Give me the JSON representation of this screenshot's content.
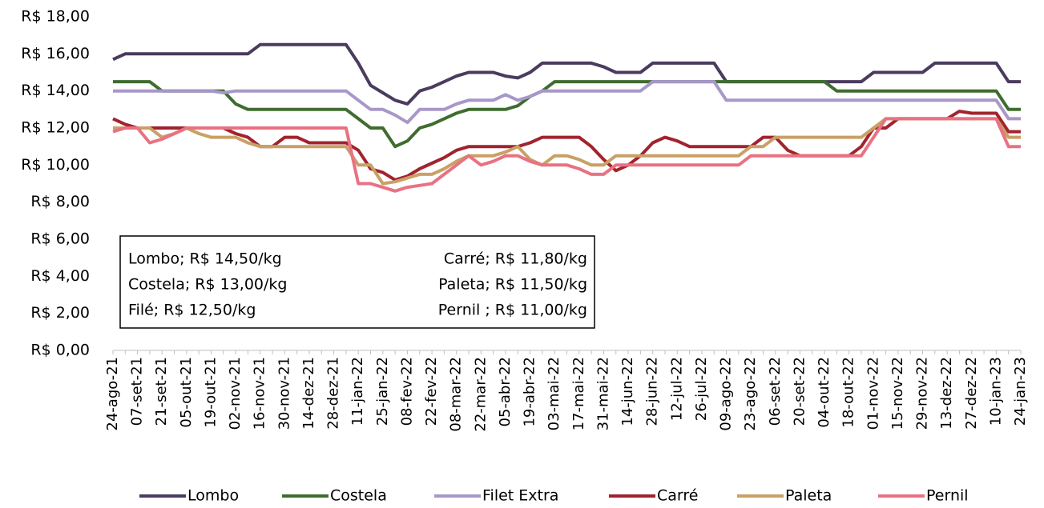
{
  "chart_data": {
    "type": "line",
    "categories": [
      "24-ago-21",
      null,
      "07-set-21",
      null,
      "21-set-21",
      null,
      "05-out-21",
      null,
      "19-out-21",
      null,
      "02-nov-21",
      null,
      "16-nov-21",
      null,
      "30-nov-21",
      null,
      "14-dez-21",
      null,
      "28-dez-21",
      null,
      "11-jan-22",
      null,
      "25-jan-22",
      null,
      "08-fev-22",
      null,
      "22-fev-22",
      null,
      "08-mar-22",
      null,
      "22-mar-22",
      null,
      "05-abr-22",
      null,
      "19-abr-22",
      null,
      "03-mai-22",
      null,
      "17-mai-22",
      null,
      "31-mai-22",
      null,
      "14-jun-22",
      null,
      "28-jun-22",
      null,
      "12-jul-22",
      null,
      "26-jul-22",
      null,
      "09-ago-22",
      null,
      "23-ago-22",
      null,
      "06-set-22",
      null,
      "20-set-22",
      null,
      "04-out-22",
      null,
      "18-out-22",
      null,
      "01-nov-22",
      null,
      "15-nov-22",
      null,
      "29-nov-22",
      null,
      "13-dez-22",
      null,
      "27-dez-22",
      null,
      "10-jan-23",
      null,
      "24-jan-23"
    ],
    "series": [
      {
        "name": "Lombo",
        "color": "#4b3b5f",
        "values": [
          15.7,
          16,
          16,
          16,
          16,
          16,
          16,
          16,
          16,
          16,
          16,
          16,
          16.5,
          16.5,
          16.5,
          16.5,
          16.5,
          16.5,
          16.5,
          16.5,
          15.5,
          14.3,
          13.9,
          13.5,
          13.3,
          14,
          14.2,
          14.5,
          14.8,
          15,
          15,
          15,
          14.8,
          14.7,
          15,
          15.5,
          15.5,
          15.5,
          15.5,
          15.5,
          15.3,
          15,
          15,
          15,
          15.5,
          15.5,
          15.5,
          15.5,
          15.5,
          15.5,
          14.5,
          14.5,
          14.5,
          14.5,
          14.5,
          14.5,
          14.5,
          14.5,
          14.5,
          14.5,
          14.5,
          14.5,
          15,
          15,
          15,
          15,
          15,
          15.5,
          15.5,
          15.5,
          15.5,
          15.5,
          15.5,
          14.5,
          14.5
        ]
      },
      {
        "name": "Costela",
        "color": "#3f6c2f",
        "values": [
          14.5,
          14.5,
          14.5,
          14.5,
          14,
          14,
          14,
          14,
          14,
          14,
          13.3,
          13,
          13,
          13,
          13,
          13,
          13,
          13,
          13,
          13,
          12.5,
          12,
          12,
          11,
          11.3,
          12,
          12.2,
          12.5,
          12.8,
          13,
          13,
          13,
          13,
          13.2,
          13.7,
          14,
          14.5,
          14.5,
          14.5,
          14.5,
          14.5,
          14.5,
          14.5,
          14.5,
          14.5,
          14.5,
          14.5,
          14.5,
          14.5,
          14.5,
          14.5,
          14.5,
          14.5,
          14.5,
          14.5,
          14.5,
          14.5,
          14.5,
          14.5,
          14,
          14,
          14,
          14,
          14,
          14,
          14,
          14,
          14,
          14,
          14,
          14,
          14,
          14,
          13,
          13
        ]
      },
      {
        "name": "Filet Extra",
        "color": "#a897c9",
        "values": [
          14,
          14,
          14,
          14,
          14,
          14,
          14,
          14,
          14,
          13.9,
          14,
          14,
          14,
          14,
          14,
          14,
          14,
          14,
          14,
          14,
          13.5,
          13,
          13,
          12.7,
          12.3,
          13,
          13,
          13,
          13.3,
          13.5,
          13.5,
          13.5,
          13.8,
          13.5,
          13.7,
          14,
          14,
          14,
          14,
          14,
          14,
          14,
          14,
          14,
          14.5,
          14.5,
          14.5,
          14.5,
          14.5,
          14.5,
          13.5,
          13.5,
          13.5,
          13.5,
          13.5,
          13.5,
          13.5,
          13.5,
          13.5,
          13.5,
          13.5,
          13.5,
          13.5,
          13.5,
          13.5,
          13.5,
          13.5,
          13.5,
          13.5,
          13.5,
          13.5,
          13.5,
          13.5,
          12.5,
          12.5
        ]
      },
      {
        "name": "Carré",
        "color": "#a1232d",
        "values": [
          12.5,
          12.2,
          12,
          12,
          12,
          12,
          12,
          12,
          12,
          12,
          11.7,
          11.5,
          11,
          11,
          11.5,
          11.5,
          11.2,
          11.2,
          11.2,
          11.2,
          10.8,
          9.8,
          9.6,
          9.2,
          9.4,
          9.8,
          10.1,
          10.4,
          10.8,
          11,
          11,
          11,
          11,
          11,
          11.2,
          11.5,
          11.5,
          11.5,
          11.5,
          11,
          10.3,
          9.7,
          10,
          10.5,
          11.2,
          11.5,
          11.3,
          11,
          11,
          11,
          11,
          11,
          11,
          11.5,
          11.5,
          10.8,
          10.5,
          10.5,
          10.5,
          10.5,
          10.5,
          11,
          12,
          12,
          12.5,
          12.5,
          12.5,
          12.5,
          12.5,
          12.9,
          12.8,
          12.8,
          12.8,
          11.8,
          11.8
        ]
      },
      {
        "name": "Paleta",
        "color": "#c9a065",
        "values": [
          12,
          12,
          12,
          12,
          11.5,
          11.7,
          12,
          11.7,
          11.5,
          11.5,
          11.5,
          11.2,
          11,
          11,
          11,
          11,
          11,
          11,
          11,
          11,
          10,
          10,
          9,
          9.1,
          9.3,
          9.5,
          9.5,
          9.8,
          10.2,
          10.5,
          10.5,
          10.5,
          10.7,
          11,
          10.3,
          10,
          10.5,
          10.5,
          10.3,
          10,
          10,
          10.5,
          10.5,
          10.5,
          10.5,
          10.5,
          10.5,
          10.5,
          10.5,
          10.5,
          10.5,
          10.5,
          11,
          11,
          11.5,
          11.5,
          11.5,
          11.5,
          11.5,
          11.5,
          11.5,
          11.5,
          12,
          12.5,
          12.5,
          12.5,
          12.5,
          12.5,
          12.5,
          12.5,
          12.5,
          12.5,
          12.5,
          11.5,
          11.5
        ]
      },
      {
        "name": "Pernil",
        "color": "#e87282",
        "values": [
          11.8,
          12,
          12,
          11.2,
          11.4,
          11.7,
          12,
          12,
          12,
          12,
          12,
          12,
          12,
          12,
          12,
          12,
          12,
          12,
          12,
          12,
          9,
          9,
          8.8,
          8.6,
          8.8,
          8.9,
          9,
          9.5,
          10,
          10.5,
          10,
          10.2,
          10.5,
          10.5,
          10.2,
          10,
          10,
          10,
          9.8,
          9.5,
          9.5,
          10,
          10,
          10,
          10,
          10,
          10,
          10,
          10,
          10,
          10,
          10,
          10.5,
          10.5,
          10.5,
          10.5,
          10.5,
          10.5,
          10.5,
          10.5,
          10.5,
          10.5,
          11.5,
          12.5,
          12.5,
          12.5,
          12.5,
          12.5,
          12.5,
          12.5,
          12.5,
          12.5,
          12.5,
          11,
          11
        ]
      }
    ],
    "ylim": [
      0,
      18
    ],
    "yticks": [
      {
        "value": 0,
        "label": "R$ 0,00"
      },
      {
        "value": 2,
        "label": "R$ 2,00"
      },
      {
        "value": 4,
        "label": "R$ 4,00"
      },
      {
        "value": 6,
        "label": "R$ 6,00"
      },
      {
        "value": 8,
        "label": "R$ 8,00"
      },
      {
        "value": 10,
        "label": "R$ 10,00"
      },
      {
        "value": 12,
        "label": "R$ 12,00"
      },
      {
        "value": 14,
        "label": "R$ 14,00"
      },
      {
        "value": 16,
        "label": "R$ 16,00"
      },
      {
        "value": 18,
        "label": "R$ 18,00"
      }
    ],
    "grid": false,
    "legend": "bottom",
    "annotation_left": [
      "Lombo; R$ 14,50/kg",
      "Costela; R$ 13,00/kg",
      "Filé; R$ 12,50/kg"
    ],
    "annotation_right": [
      "Carré; R$ 11,80/kg",
      "Paleta; R$ 11,50/kg",
      "Pernil ; R$ 11,00/kg"
    ]
  }
}
